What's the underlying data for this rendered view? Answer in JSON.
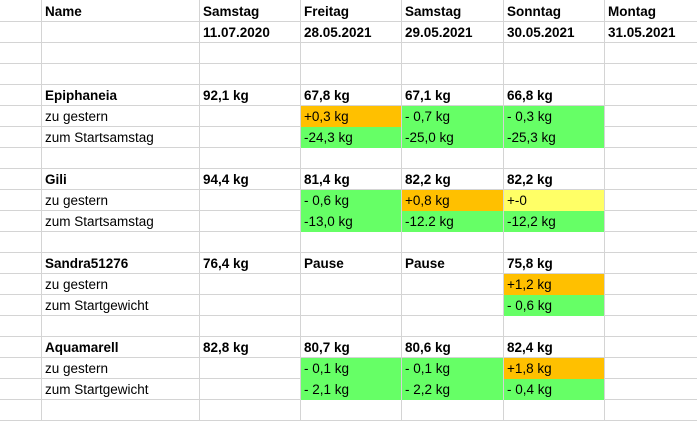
{
  "header": {
    "name_label": "Name",
    "days": [
      {
        "day": "Samstag",
        "date": "11.07.2020"
      },
      {
        "day": "Freitag",
        "date": "28.05.2021"
      },
      {
        "day": "Samstag",
        "date": "29.05.2021"
      },
      {
        "day": "Sonntag",
        "date": "30.05.2021"
      },
      {
        "day": "Montag",
        "date": "31.05.2021"
      }
    ]
  },
  "colors": {
    "green": "#66ff66",
    "orange": "#ffc000",
    "yellow": "#ffff66",
    "grid": "#d4d4d4"
  },
  "groups": [
    {
      "name": "Epiphaneia",
      "weights": [
        "92,1 kg",
        "67,8 kg",
        "67,1 kg",
        "66,8 kg",
        ""
      ],
      "rows": [
        {
          "label": "zu gestern",
          "cells": [
            {
              "v": "",
              "c": ""
            },
            {
              "v": "+0,3 kg",
              "c": "orange"
            },
            {
              "v": "- 0,7 kg",
              "c": "green"
            },
            {
              "v": "- 0,3 kg",
              "c": "green"
            },
            {
              "v": "",
              "c": ""
            }
          ]
        },
        {
          "label": "zum Startsamstag",
          "cells": [
            {
              "v": "",
              "c": ""
            },
            {
              "v": "-24,3 kg",
              "c": "green"
            },
            {
              "v": "-25,0 kg",
              "c": "green"
            },
            {
              "v": "-25,3 kg",
              "c": "green"
            },
            {
              "v": "",
              "c": ""
            }
          ]
        }
      ]
    },
    {
      "name": "Gili",
      "weights": [
        "94,4 kg",
        "81,4 kg",
        "82,2 kg",
        "82,2 kg",
        ""
      ],
      "rows": [
        {
          "label": "zu gestern",
          "cells": [
            {
              "v": "",
              "c": ""
            },
            {
              "v": "- 0,6 kg",
              "c": "green"
            },
            {
              "v": "+0,8 kg",
              "c": "orange"
            },
            {
              "v": "+-0",
              "c": "yellow"
            },
            {
              "v": "",
              "c": ""
            }
          ]
        },
        {
          "label": "zum Startsamstag",
          "cells": [
            {
              "v": "",
              "c": ""
            },
            {
              "v": "-13,0 kg",
              "c": "green"
            },
            {
              "v": "-12.2 kg",
              "c": "green"
            },
            {
              "v": "-12,2 kg",
              "c": "green"
            },
            {
              "v": "",
              "c": ""
            }
          ]
        }
      ]
    },
    {
      "name": "Sandra51276",
      "weights": [
        "76,4 kg",
        "Pause",
        "Pause",
        "75,8 kg",
        ""
      ],
      "rows": [
        {
          "label": "zu gestern",
          "cells": [
            {
              "v": "",
              "c": ""
            },
            {
              "v": "",
              "c": ""
            },
            {
              "v": "",
              "c": ""
            },
            {
              "v": "+1,2 kg",
              "c": "orange"
            },
            {
              "v": "",
              "c": ""
            }
          ]
        },
        {
          "label": "zum Startgewicht",
          "cells": [
            {
              "v": "",
              "c": ""
            },
            {
              "v": "",
              "c": ""
            },
            {
              "v": "",
              "c": ""
            },
            {
              "v": "- 0,6 kg",
              "c": "green"
            },
            {
              "v": "",
              "c": ""
            }
          ]
        }
      ]
    },
    {
      "name": "Aquamarell",
      "weights": [
        "82,8 kg",
        "80,7 kg",
        "80,6 kg",
        "82,4 kg",
        ""
      ],
      "rows": [
        {
          "label": "zu gestern",
          "cells": [
            {
              "v": "",
              "c": ""
            },
            {
              "v": "- 0,1 kg",
              "c": "green"
            },
            {
              "v": "- 0,1 kg",
              "c": "green"
            },
            {
              "v": "+1,8 kg",
              "c": "orange"
            },
            {
              "v": "",
              "c": ""
            }
          ]
        },
        {
          "label": "zum Startgewicht",
          "cells": [
            {
              "v": "",
              "c": ""
            },
            {
              "v": "- 2,1 kg",
              "c": "green"
            },
            {
              "v": "- 2,2 kg",
              "c": "green"
            },
            {
              "v": "- 0,4 kg",
              "c": "green"
            },
            {
              "v": "",
              "c": ""
            }
          ]
        }
      ]
    }
  ]
}
